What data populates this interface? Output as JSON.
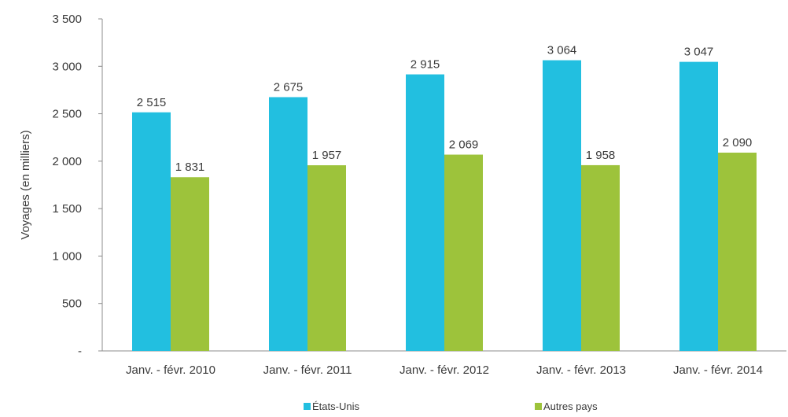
{
  "chart_data": {
    "type": "bar",
    "title": "",
    "xlabel": "",
    "ylabel": "Voyages (en milliers)",
    "ylim": [
      0,
      3500
    ],
    "yticks": [
      0,
      500,
      1000,
      1500,
      2000,
      2500,
      3000,
      3500
    ],
    "ytick_labels": [
      "-",
      "500",
      "1 000",
      "1 500",
      "2 000",
      "2 500",
      "3 000",
      "3 500"
    ],
    "categories": [
      "Janv. - févr. 2010",
      "Janv. - févr. 2011",
      "Janv. - févr. 2012",
      "Janv. - févr. 2013",
      "Janv. - févr. 2014"
    ],
    "series": [
      {
        "name": "États-Unis",
        "color": "#22BFE0",
        "values": [
          2515,
          2675,
          2915,
          3064,
          3047
        ],
        "labels": [
          "2 515",
          "2 675",
          "2 915",
          "3 064",
          "3 047"
        ]
      },
      {
        "name": "Autres pays",
        "color": "#9DC33B",
        "values": [
          1831,
          1957,
          2069,
          1958,
          2090
        ],
        "labels": [
          "1 831",
          "1 957",
          "2 069",
          "1 958",
          "2 090"
        ]
      }
    ],
    "grid": false,
    "legend_position": "bottom"
  }
}
